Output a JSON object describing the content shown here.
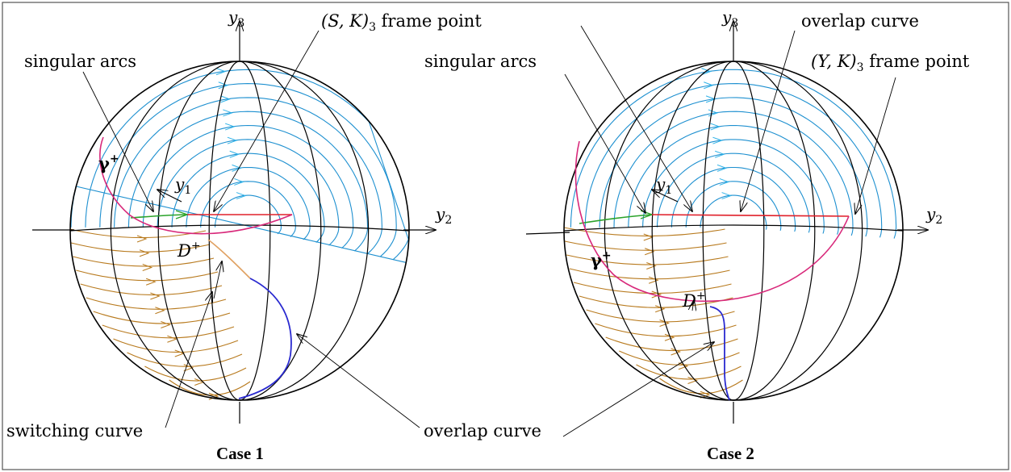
{
  "case1": {
    "caption": "Case 1",
    "labels": {
      "singular_arcs": "singular arcs",
      "frame_point": "(S, K)",
      "frame_point_sub": "3",
      "frame_point_suffix": " frame point",
      "switching_curve": "switching curve",
      "overlap_curve": "overlap curve",
      "gamma": "γ",
      "gamma_sup": "+",
      "d": "D",
      "d_sup": "+"
    },
    "axes": {
      "y1": "y",
      "y1_sub": "1",
      "y2": "y",
      "y2_sub": "2",
      "y3": "y",
      "y3_sub": "3"
    }
  },
  "case2": {
    "caption": "Case 2",
    "labels": {
      "singular_arcs": "singular arcs",
      "overlap_curve_top": "overlap curve",
      "frame_point": "(Y, K)",
      "frame_point_sub": "3",
      "frame_point_suffix": " frame point",
      "overlap_curve": "overlap curve",
      "gamma": "γ",
      "gamma_sup": "+",
      "d": "D",
      "d_sup": "+"
    },
    "axes": {
      "y1": "y",
      "y1_sub": "1",
      "y2": "y",
      "y2_sub": "2",
      "y3": "y",
      "y3_sub": "3"
    }
  },
  "colors": {
    "frame": "#555555",
    "sphere": "#000000",
    "blue_family": "#1e90d0",
    "blue_arrow": "#2fb2e8",
    "orange_family": "#b87a1e",
    "singular": "#2aa32a",
    "frame_curve": "#e0202a",
    "switch_curve": "#d8287a",
    "overlap": "#2a2ad0",
    "switching_light": "#e0a060"
  }
}
